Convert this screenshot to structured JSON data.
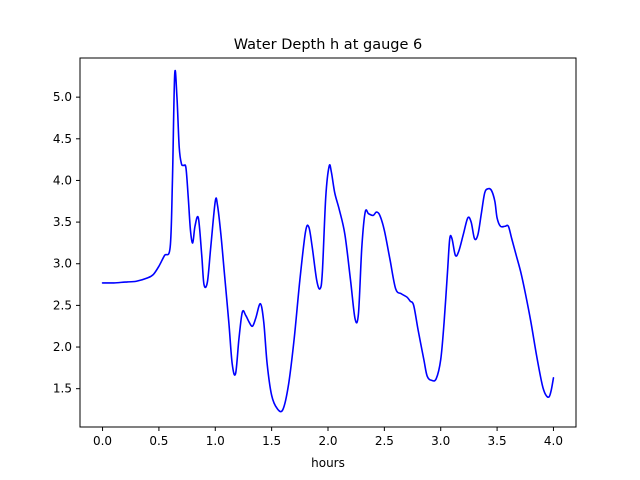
{
  "chart_data": {
    "type": "line",
    "title": "Water Depth h at gauge 6",
    "xlabel": "hours",
    "ylabel": "",
    "xlim": [
      -0.2,
      4.2
    ],
    "ylim": [
      1.04,
      5.47
    ],
    "xticks": [
      0.0,
      0.5,
      1.0,
      1.5,
      2.0,
      2.5,
      3.0,
      3.5,
      4.0
    ],
    "xtick_labels": [
      "0.0",
      "0.5",
      "1.0",
      "1.5",
      "2.0",
      "2.5",
      "3.0",
      "3.5",
      "4.0"
    ],
    "yticks": [
      1.5,
      2.0,
      2.5,
      3.0,
      3.5,
      4.0,
      4.5,
      5.0
    ],
    "ytick_labels": [
      "1.5",
      "2.0",
      "2.5",
      "3.0",
      "3.5",
      "4.0",
      "4.5",
      "5.0"
    ],
    "grid": false,
    "line_color": "#0000ff",
    "series": [
      {
        "x": [
          0.0,
          0.1,
          0.2,
          0.3,
          0.4,
          0.45,
          0.5,
          0.55,
          0.6,
          0.62,
          0.64,
          0.66,
          0.68,
          0.7,
          0.72,
          0.74,
          0.76,
          0.78,
          0.8,
          0.82,
          0.85,
          0.88,
          0.9,
          0.93,
          0.96,
          1.0,
          1.02,
          1.05,
          1.08,
          1.12,
          1.15,
          1.18,
          1.21,
          1.24,
          1.27,
          1.3,
          1.33,
          1.36,
          1.4,
          1.43,
          1.46,
          1.5,
          1.55,
          1.6,
          1.65,
          1.7,
          1.75,
          1.8,
          1.83,
          1.86,
          1.9,
          1.93,
          1.95,
          1.98,
          2.01,
          2.03,
          2.06,
          2.1,
          2.15,
          2.2,
          2.24,
          2.27,
          2.3,
          2.33,
          2.36,
          2.4,
          2.43,
          2.46,
          2.5,
          2.55,
          2.6,
          2.65,
          2.7,
          2.73,
          2.76,
          2.8,
          2.85,
          2.88,
          2.92,
          2.96,
          3.0,
          3.03,
          3.06,
          3.08,
          3.1,
          3.13,
          3.16,
          3.2,
          3.24,
          3.27,
          3.3,
          3.33,
          3.36,
          3.39,
          3.42,
          3.45,
          3.48,
          3.5,
          3.53,
          3.57,
          3.6,
          3.63,
          3.67,
          3.71,
          3.75,
          3.8,
          3.85,
          3.9,
          3.93,
          3.96,
          3.98,
          4.0
        ],
        "y": [
          2.77,
          2.77,
          2.78,
          2.79,
          2.83,
          2.87,
          2.97,
          3.1,
          3.2,
          4.0,
          5.27,
          5.0,
          4.4,
          4.2,
          4.18,
          4.15,
          3.8,
          3.4,
          3.25,
          3.45,
          3.55,
          3.1,
          2.75,
          2.78,
          3.2,
          3.75,
          3.7,
          3.35,
          2.9,
          2.3,
          1.8,
          1.68,
          2.1,
          2.42,
          2.38,
          2.3,
          2.25,
          2.35,
          2.52,
          2.3,
          1.8,
          1.42,
          1.26,
          1.25,
          1.55,
          2.1,
          2.8,
          3.38,
          3.44,
          3.2,
          2.8,
          2.7,
          2.9,
          3.8,
          4.17,
          4.1,
          3.85,
          3.65,
          3.35,
          2.8,
          2.34,
          2.4,
          3.2,
          3.62,
          3.6,
          3.58,
          3.62,
          3.58,
          3.4,
          3.05,
          2.7,
          2.64,
          2.6,
          2.55,
          2.5,
          2.2,
          1.85,
          1.65,
          1.6,
          1.62,
          1.85,
          2.3,
          2.9,
          3.3,
          3.3,
          3.1,
          3.15,
          3.35,
          3.55,
          3.5,
          3.3,
          3.35,
          3.6,
          3.85,
          3.9,
          3.88,
          3.75,
          3.55,
          3.45,
          3.45,
          3.45,
          3.3,
          3.1,
          2.9,
          2.65,
          2.3,
          1.9,
          1.55,
          1.43,
          1.4,
          1.48,
          1.63
        ]
      }
    ]
  }
}
